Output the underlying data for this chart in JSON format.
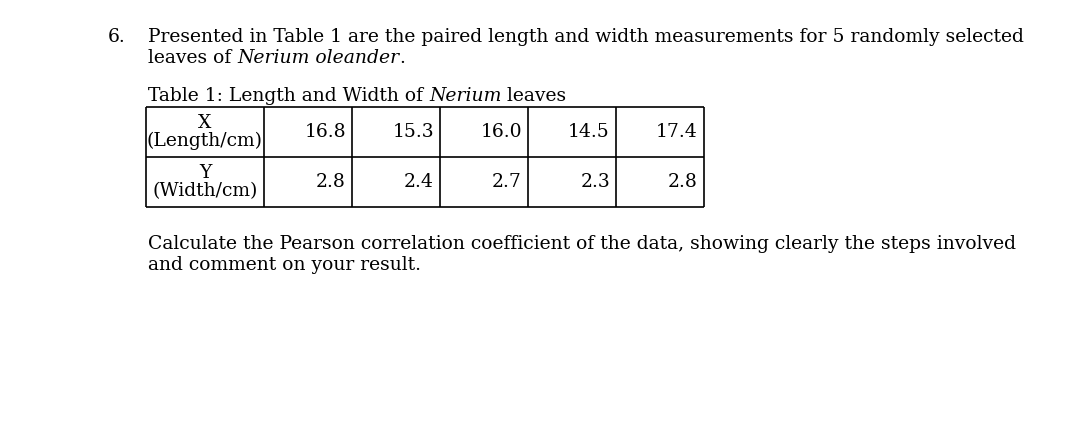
{
  "background_color": "#ffffff",
  "question_number": "6.",
  "intro_line1": "Presented in Table 1 are the paired length and width measurements for 5 randomly selected",
  "intro_line2_plain": "leaves of ",
  "intro_line2_italic": "Nerium oleander",
  "intro_line2_end": ".",
  "table_title_plain": "Table 1: Length and Width of ",
  "table_title_italic": "Nerium",
  "table_title_end": " leaves",
  "row1_header_line1": "X",
  "row1_header_line2": "(Length/cm)",
  "row1_values": [
    "16.8",
    "15.3",
    "16.0",
    "14.5",
    "17.4"
  ],
  "row2_header_line1": "Y",
  "row2_header_line2": "(Width/cm)",
  "row2_values": [
    "2.8",
    "2.4",
    "2.7",
    "2.3",
    "2.8"
  ],
  "footer_line1": "Calculate the Pearson correlation coefficient of the data, showing clearly the steps involved",
  "footer_line2": "and comment on your result.",
  "font_size": 13.5,
  "text_color": "#000000",
  "font_family": "DejaVu Serif"
}
